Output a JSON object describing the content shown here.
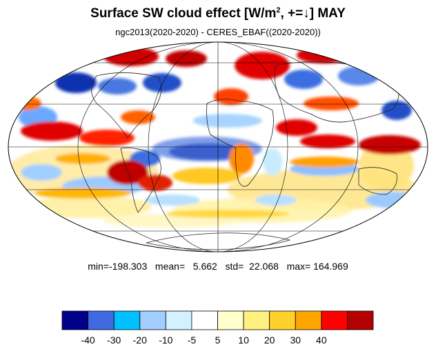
{
  "title": {
    "prefix": "Surface SW cloud effect [W/m",
    "sup": "2",
    "suffix": ", +=↓]  MAY"
  },
  "subtitle": "ngc2013(2020-2020) - CERES_EBAF((2020-2020))",
  "stats": {
    "text": "min=-198.303   mean=   5.662   std=  22.068   max= 164.969",
    "min": -198.303,
    "mean": 5.662,
    "std": 22.068,
    "max": 164.969
  },
  "colorbar": {
    "colors": [
      "#00008b",
      "#4169e1",
      "#00bfff",
      "#a2cdff",
      "#d3f2ff",
      "#ffffff",
      "#ffffcc",
      "#fff080",
      "#ffd02a",
      "#ffa500",
      "#ff0000",
      "#b30000"
    ],
    "labels": [
      "-40",
      "-30",
      "-20",
      "-10",
      "-5",
      "5",
      "10",
      "20",
      "30",
      "40"
    ]
  },
  "map": {
    "projection": "mollweide",
    "grid": true,
    "coastlines": true
  }
}
